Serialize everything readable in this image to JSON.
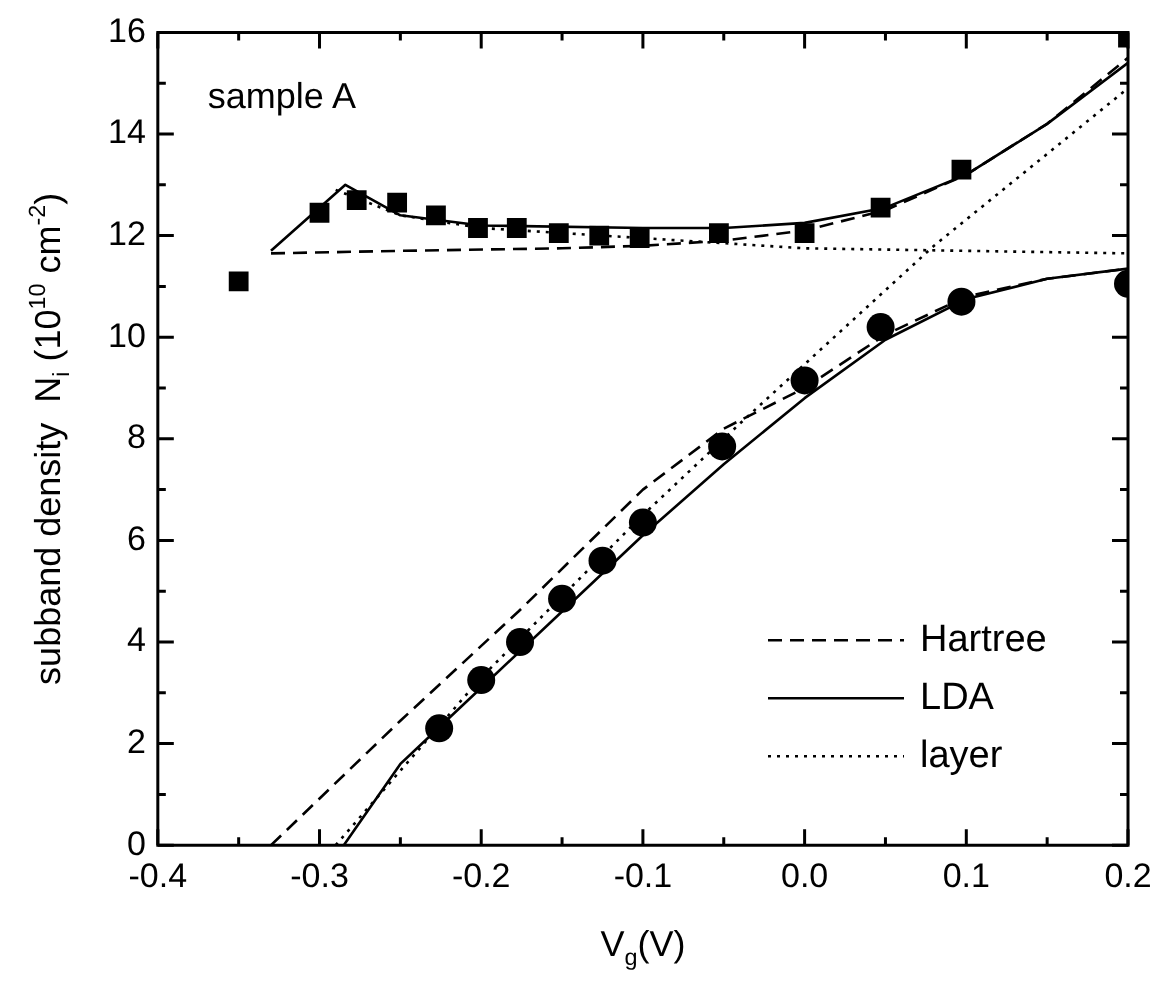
{
  "chart_data": {
    "type": "scatter",
    "xlabel": "V$_{g}$(V)",
    "ylabel": "subband density  N$_{i}$ (10$^{10}$ cm$^{-2}$)",
    "annotations": [
      "sample A"
    ],
    "xlim": [
      -0.4,
      0.2
    ],
    "ylim": [
      0,
      16
    ],
    "xticks": [
      {
        "value": -0.4,
        "label": "-0.4"
      },
      {
        "value": -0.35,
        "label": null
      },
      {
        "value": -0.3,
        "label": "-0.3"
      },
      {
        "value": -0.25,
        "label": null
      },
      {
        "value": -0.2,
        "label": "-0.2"
      },
      {
        "value": -0.15,
        "label": null
      },
      {
        "value": -0.1,
        "label": "-0.1"
      },
      {
        "value": -0.05,
        "label": null
      },
      {
        "value": 0,
        "label": "0.0"
      },
      {
        "value": 0.05,
        "label": null
      },
      {
        "value": 0.1,
        "label": "0.1"
      },
      {
        "value": 0.15,
        "label": null
      },
      {
        "value": 0.2,
        "label": "0.2"
      }
    ],
    "yticks": [
      0,
      {
        "value": 1,
        "label": null
      },
      2,
      {
        "value": 3,
        "label": null
      },
      4,
      {
        "value": 5,
        "label": null
      },
      6,
      {
        "value": 7,
        "label": null
      },
      8,
      {
        "value": 9,
        "label": null
      },
      10,
      {
        "value": 11,
        "label": null
      },
      12,
      {
        "value": 13,
        "label": null
      },
      14,
      {
        "value": 15,
        "label": null
      },
      16
    ],
    "grid": false,
    "legend": "bottom right",
    "series": [
      {
        "type": "scatter",
        "marker": "square",
        "color": "#000000",
        "x": [
          -0.35,
          -0.3,
          -0.277,
          -0.252,
          -0.228,
          -0.202,
          -0.178,
          -0.152,
          -0.127,
          -0.102,
          -0.053,
          0,
          0.047,
          0.097,
          0.2
        ],
        "values": [
          11.1,
          12.45,
          12.7,
          12.65,
          12.4,
          12.15,
          12.15,
          12.05,
          12.0,
          11.95,
          12.05,
          12.05,
          12.55,
          13.3,
          15.9
        ]
      },
      {
        "type": "scatter",
        "marker": "circle",
        "color": "#000000",
        "x": [
          -0.226,
          -0.2,
          -0.176,
          -0.15,
          -0.125,
          -0.1,
          -0.051,
          0,
          0.047,
          0.097,
          0.2
        ],
        "values": [
          2.3,
          3.25,
          4.0,
          4.85,
          5.6,
          6.35,
          7.85,
          9.15,
          10.2,
          10.7,
          11.05
        ]
      },
      {
        "type": "line",
        "name": "Hartree",
        "line_style": "dashed",
        "marker": "none",
        "color": "#000000",
        "x": [
          -0.33,
          -0.25,
          -0.15,
          -0.1,
          -0.05,
          0,
          0.05,
          0.1,
          0.15,
          0.2,
          null,
          -0.33,
          -0.25,
          -0.177,
          -0.1,
          -0.05,
          0,
          0.05,
          0.1,
          0.15,
          0.2
        ],
        "values": [
          11.65,
          11.7,
          11.75,
          11.8,
          11.9,
          12.1,
          12.5,
          13.2,
          14.2,
          15.5,
          null,
          0,
          2.45,
          4.6,
          7.0,
          8.2,
          9.0,
          10.05,
          10.8,
          11.15,
          11.35
        ]
      },
      {
        "type": "line",
        "name": "LDA",
        "line_style": "solid",
        "marker": "none",
        "color": "#000000",
        "x": [
          -0.33,
          -0.284,
          -0.25,
          -0.2,
          -0.1,
          -0.05,
          0,
          0.05,
          0.1,
          0.15,
          0.2,
          null,
          -0.285,
          -0.25,
          -0.2,
          -0.15,
          -0.1,
          -0.05,
          0,
          0.05,
          0.1,
          0.15,
          0.2
        ],
        "values": [
          11.7,
          13.0,
          12.4,
          12.2,
          12.15,
          12.15,
          12.25,
          12.55,
          13.2,
          14.2,
          15.4,
          null,
          0,
          1.6,
          3.1,
          4.6,
          6.1,
          7.5,
          8.8,
          9.95,
          10.75,
          11.15,
          11.35
        ]
      },
      {
        "type": "line",
        "name": "layer",
        "line_style": "dotted",
        "marker": "none",
        "color": "#000000",
        "x": [
          -0.29,
          -0.25,
          -0.2,
          -0.1,
          0,
          0.1,
          0.2,
          null,
          -0.29,
          -0.2,
          -0.1,
          -0.04,
          0.08,
          0.2
        ],
        "values": [
          12.9,
          12.4,
          12.15,
          11.95,
          11.75,
          11.7,
          11.65,
          null,
          0,
          3.3,
          6.5,
          8.3,
          11.8,
          14.9
        ]
      }
    ]
  }
}
